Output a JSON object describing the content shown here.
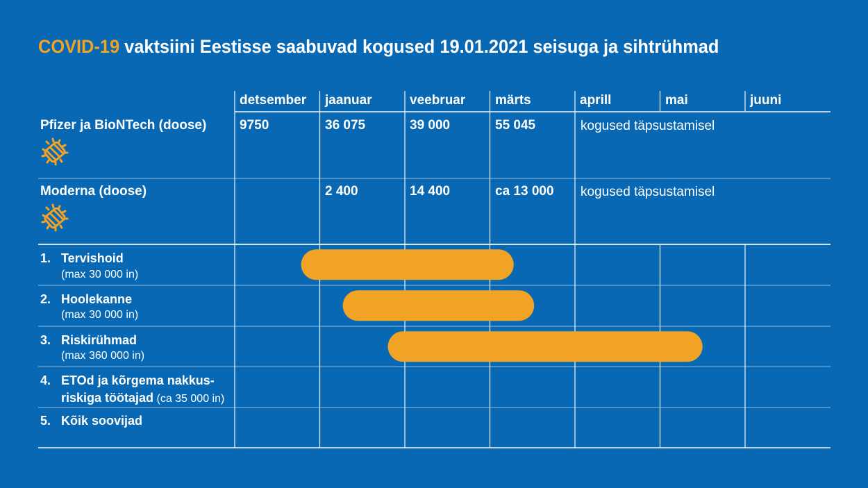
{
  "title": {
    "highlight": "COVID-19",
    "rest": "vaktsiini Eestisse saabuvad kogused 19.01.2021 seisuga ja sihtrühmad"
  },
  "colors": {
    "background": "#0868b3",
    "accent": "#f0a325",
    "text": "#ffffff"
  },
  "months": [
    "detsember",
    "jaanuar",
    "veebruar",
    "märts",
    "aprill",
    "mai",
    "juuni"
  ],
  "vaccines": [
    {
      "name": "Pfizer ja BioNTech (doose)",
      "icon": "virus-icon",
      "values": [
        "9750",
        "36 075",
        "39 000",
        "55 045"
      ],
      "note": "kogused täpsustamisel"
    },
    {
      "name": "Moderna (doose)",
      "icon": "virus-icon",
      "values": [
        "",
        "2 400",
        "14 400",
        "ca 13 000"
      ],
      "note": "kogused täpsustamisel"
    }
  ],
  "chart_data": {
    "type": "gantt",
    "title": "COVID-19 vaktsiini Eestisse saabuvad kogused 19.01.2021 seisuga ja sihtrühmad",
    "categories": [
      "detsember",
      "jaanuar",
      "veebruar",
      "märts",
      "aprill",
      "mai",
      "juuni"
    ],
    "groups": [
      {
        "number": "1.",
        "name": "Tervishoid",
        "detail": "(max 30 000 in)",
        "start_month": 0.78,
        "end_month": 3.28
      },
      {
        "number": "2.",
        "name": "Hoolekanne",
        "detail": "(max 30 000 in)",
        "start_month": 1.27,
        "end_month": 3.52
      },
      {
        "number": "3.",
        "name": "Riskirühmad",
        "detail": "(max 360 000 in)",
        "start_month": 1.8,
        "end_month": 5.5
      },
      {
        "number": "4.",
        "name_line1": "ETOd ja kõrgema nakkus-",
        "name_line2": "riskiga töötajad",
        "detail": "(ca 35 000 in)"
      },
      {
        "number": "5.",
        "name": "Kõik soovijad"
      }
    ]
  }
}
